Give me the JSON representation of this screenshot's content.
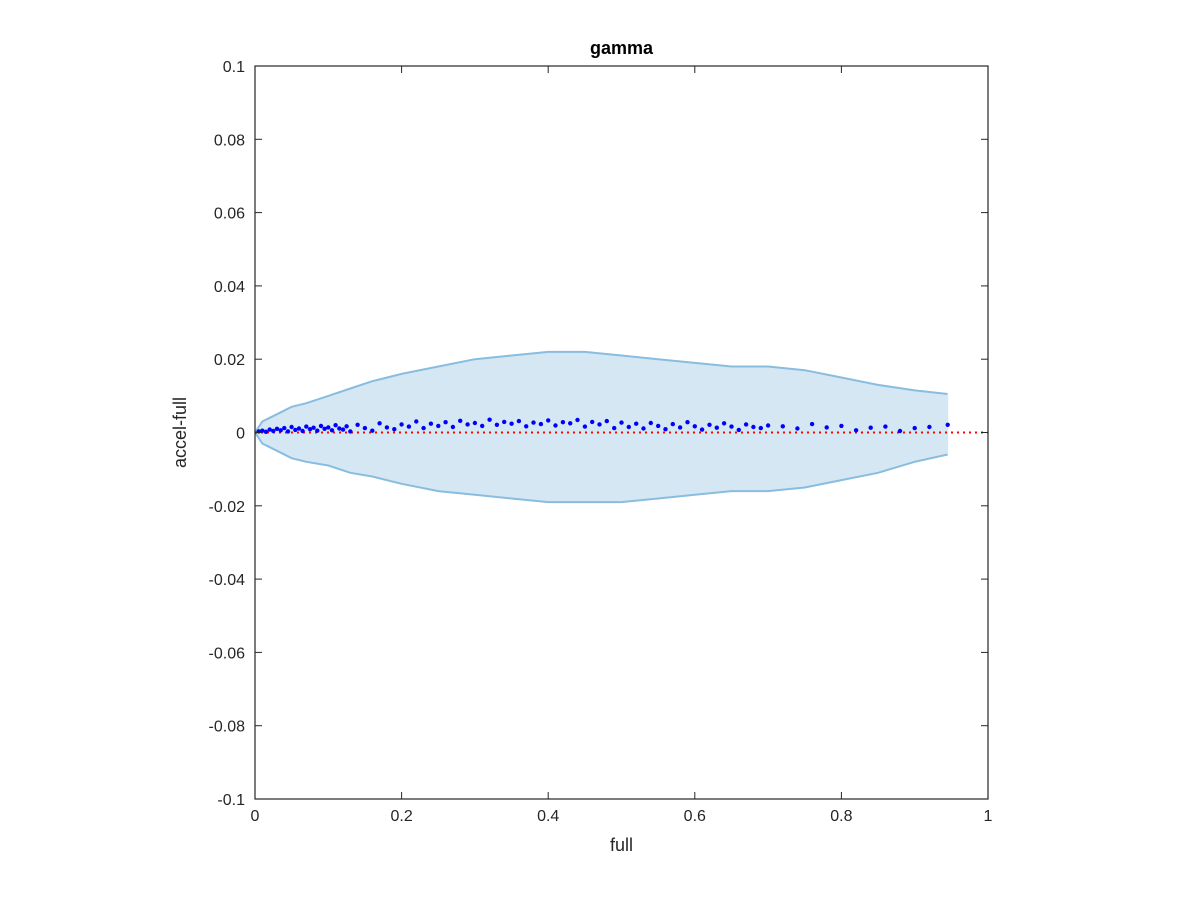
{
  "chart_data": {
    "type": "scatter",
    "title": "gamma",
    "xlabel": "full",
    "ylabel": "accel-full",
    "xlim": [
      0,
      1
    ],
    "ylim": [
      -0.1,
      0.1
    ],
    "xticks": [
      0,
      0.2,
      0.4,
      0.6,
      0.8,
      1
    ],
    "xtick_labels": [
      "0",
      "0.2",
      "0.4",
      "0.6",
      "0.8",
      "1"
    ],
    "yticks": [
      -0.1,
      -0.08,
      -0.06,
      -0.04,
      -0.02,
      0,
      0.02,
      0.04,
      0.06,
      0.08,
      0.1
    ],
    "ytick_labels": [
      "-0.1",
      "-0.08",
      "-0.06",
      "-0.04",
      "-0.02",
      "0",
      "0.02",
      "0.04",
      "0.06",
      "0.08",
      "0.1"
    ],
    "grid": false,
    "reference_line": {
      "y": 0,
      "style": "dotted",
      "color": "#ff0000"
    },
    "band": {
      "color_line": "#88bde0",
      "color_fill": "#d6e7f4",
      "x": [
        0,
        0.01,
        0.02,
        0.03,
        0.05,
        0.07,
        0.1,
        0.13,
        0.16,
        0.2,
        0.25,
        0.3,
        0.35,
        0.4,
        0.45,
        0.5,
        0.55,
        0.6,
        0.65,
        0.7,
        0.75,
        0.8,
        0.85,
        0.9,
        0.945
      ],
      "upper": [
        0,
        0.003,
        0.004,
        0.005,
        0.007,
        0.008,
        0.01,
        0.012,
        0.014,
        0.016,
        0.018,
        0.02,
        0.021,
        0.022,
        0.022,
        0.021,
        0.02,
        0.019,
        0.018,
        0.018,
        0.017,
        0.015,
        0.013,
        0.0115,
        0.0105
      ],
      "lower": [
        0,
        -0.003,
        -0.004,
        -0.005,
        -0.007,
        -0.008,
        -0.009,
        -0.011,
        -0.012,
        -0.014,
        -0.016,
        -0.017,
        -0.018,
        -0.019,
        -0.019,
        -0.019,
        -0.018,
        -0.017,
        -0.016,
        -0.016,
        -0.015,
        -0.013,
        -0.011,
        -0.008,
        -0.006
      ]
    },
    "series": [
      {
        "color": "#0000ff",
        "x": [
          0.005,
          0.01,
          0.015,
          0.02,
          0.025,
          0.03,
          0.035,
          0.04,
          0.045,
          0.05,
          0.055,
          0.06,
          0.065,
          0.07,
          0.075,
          0.08,
          0.085,
          0.09,
          0.095,
          0.1,
          0.105,
          0.11,
          0.115,
          0.12,
          0.125,
          0.13,
          0.14,
          0.15,
          0.16,
          0.17,
          0.18,
          0.19,
          0.2,
          0.21,
          0.22,
          0.23,
          0.24,
          0.25,
          0.26,
          0.27,
          0.28,
          0.29,
          0.3,
          0.31,
          0.32,
          0.33,
          0.34,
          0.35,
          0.36,
          0.37,
          0.38,
          0.39,
          0.4,
          0.41,
          0.42,
          0.43,
          0.44,
          0.45,
          0.46,
          0.47,
          0.48,
          0.49,
          0.5,
          0.51,
          0.52,
          0.53,
          0.54,
          0.55,
          0.56,
          0.57,
          0.58,
          0.59,
          0.6,
          0.61,
          0.62,
          0.63,
          0.64,
          0.65,
          0.66,
          0.67,
          0.68,
          0.69,
          0.7,
          0.72,
          0.74,
          0.76,
          0.78,
          0.8,
          0.82,
          0.84,
          0.86,
          0.88,
          0.9,
          0.92,
          0.945
        ],
        "y": [
          0.0003,
          0.0005,
          0.0002,
          0.0008,
          0.0004,
          0.001,
          0.0006,
          0.0012,
          0.0003,
          0.0015,
          0.0007,
          0.0011,
          0.0004,
          0.0016,
          0.0009,
          0.0013,
          0.0005,
          0.0018,
          0.001,
          0.0014,
          0.0006,
          0.002,
          0.0011,
          0.0008,
          0.0017,
          0.0003,
          0.0021,
          0.0012,
          0.0005,
          0.0025,
          0.0014,
          0.0009,
          0.0022,
          0.0016,
          0.003,
          0.0012,
          0.0024,
          0.0018,
          0.0028,
          0.0015,
          0.0032,
          0.0022,
          0.0026,
          0.0018,
          0.0035,
          0.0021,
          0.0029,
          0.0024,
          0.0031,
          0.0017,
          0.0027,
          0.0023,
          0.0033,
          0.0019,
          0.0028,
          0.0025,
          0.0034,
          0.0016,
          0.0029,
          0.0022,
          0.0031,
          0.0012,
          0.0027,
          0.0015,
          0.0024,
          0.0011,
          0.0026,
          0.0018,
          0.0009,
          0.0023,
          0.0014,
          0.0028,
          0.0017,
          0.0008,
          0.0021,
          0.0013,
          0.0025,
          0.0016,
          0.0007,
          0.0022,
          0.0015,
          0.0012,
          0.0019,
          0.0017,
          0.0011,
          0.0023,
          0.0014,
          0.0018,
          0.0006,
          0.0013,
          0.0016,
          0.0004,
          0.0012,
          0.0015,
          0.0021
        ]
      }
    ]
  }
}
